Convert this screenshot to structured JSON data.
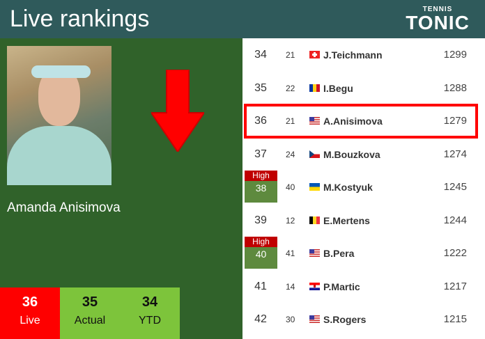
{
  "header": {
    "title": "Live rankings",
    "logo_top": "TENNIS",
    "logo_main": "TONIC"
  },
  "player": {
    "name": "Amanda Anisimova",
    "trend": "down"
  },
  "stats": [
    {
      "value": "36",
      "label": "Live"
    },
    {
      "value": "35",
      "label": "Actual"
    },
    {
      "value": "34",
      "label": "YTD"
    }
  ],
  "colors": {
    "live": "#fe0000",
    "stat": "#7dc43b",
    "panel": "#30622a",
    "header": "#2f5a5b",
    "highlight": "#ff0000"
  },
  "rows": [
    {
      "rank": "34",
      "age": "21",
      "flag": "switzerland",
      "name": "J.Teichmann",
      "points": "1299"
    },
    {
      "rank": "35",
      "age": "22",
      "flag": "romania",
      "name": "I.Begu",
      "points": "1288"
    },
    {
      "rank": "36",
      "age": "21",
      "flag": "usa",
      "name": "A.Anisimova",
      "points": "1279",
      "highlighted": true
    },
    {
      "rank": "37",
      "age": "24",
      "flag": "czech",
      "name": "M.Bouzkova",
      "points": "1274"
    },
    {
      "rank": "38",
      "age": "40",
      "flag": "ukraine",
      "name": "M.Kostyuk",
      "points": "1245",
      "badge": "High"
    },
    {
      "rank": "39",
      "age": "12",
      "flag": "belgium",
      "name": "E.Mertens",
      "points": "1244"
    },
    {
      "rank": "40",
      "age": "41",
      "flag": "usa",
      "name": "B.Pera",
      "points": "1222",
      "badge": "High"
    },
    {
      "rank": "41",
      "age": "14",
      "flag": "croatia",
      "name": "P.Martic",
      "points": "1217"
    },
    {
      "rank": "42",
      "age": "30",
      "flag": "usa",
      "name": "S.Rogers",
      "points": "1215"
    }
  ]
}
